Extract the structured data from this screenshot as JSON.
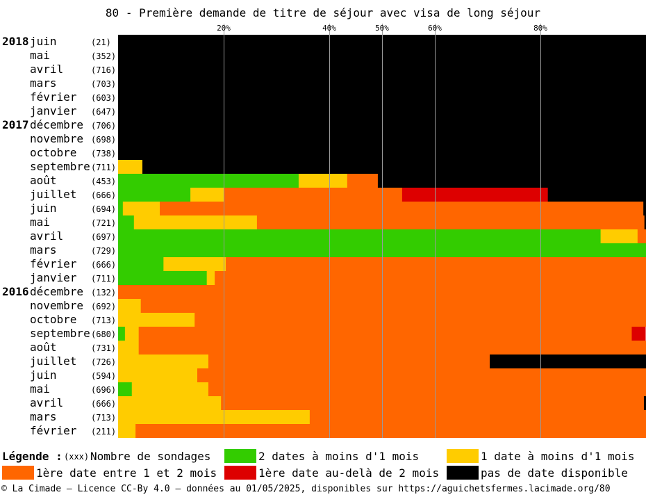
{
  "title": "80 - Première demande de titre de séjour avec visa de long séjour",
  "chart_data": {
    "type": "bar",
    "stacked": true,
    "orientation": "horizontal",
    "title": "80 - Première demande de titre de séjour avec visa de long séjour",
    "xlim": [
      0,
      100
    ],
    "x_ticks": [
      {
        "value": 20,
        "label": "20%"
      },
      {
        "value": 40,
        "label": "40%"
      },
      {
        "value": 50,
        "label": "50%"
      },
      {
        "value": 60,
        "label": "60%"
      },
      {
        "value": 80,
        "label": "80%"
      }
    ],
    "grid": true,
    "series": [
      {
        "key": "two_dates",
        "name": "2 dates à moins d'1 mois",
        "color": "#33cc00"
      },
      {
        "key": "one_date",
        "name": "1 date à moins d'1 mois",
        "color": "#ffcc00"
      },
      {
        "key": "one_two_months",
        "name": "1ère date entre 1 et 2 mois",
        "color": "#ff6600"
      },
      {
        "key": "beyond_two_months",
        "name": "1ère date au-delà de 2 mois",
        "color": "#dd0000"
      },
      {
        "key": "none",
        "name": "pas de date disponible",
        "color": "#000000"
      }
    ],
    "rows": [
      {
        "year": "2018",
        "month": "juin",
        "count": "(21)",
        "values": [
          0,
          0,
          0,
          0,
          100
        ]
      },
      {
        "year": "",
        "month": "mai",
        "count": "(352)",
        "values": [
          0,
          0,
          0,
          0,
          100
        ]
      },
      {
        "year": "",
        "month": "avril",
        "count": "(716)",
        "values": [
          0,
          0,
          0,
          0,
          100
        ]
      },
      {
        "year": "",
        "month": "mars",
        "count": "(703)",
        "values": [
          0,
          0,
          0,
          0,
          100
        ]
      },
      {
        "year": "",
        "month": "février",
        "count": "(603)",
        "values": [
          0,
          0,
          0,
          0,
          100
        ]
      },
      {
        "year": "",
        "month": "janvier",
        "count": "(647)",
        "values": [
          0,
          0,
          0,
          0,
          100
        ]
      },
      {
        "year": "2017",
        "month": "décembre",
        "count": "(706)",
        "values": [
          0,
          0,
          0,
          0,
          100
        ]
      },
      {
        "year": "",
        "month": "novembre",
        "count": "(698)",
        "values": [
          0,
          0,
          0,
          0,
          100
        ]
      },
      {
        "year": "",
        "month": "octobre",
        "count": "(738)",
        "values": [
          0,
          0,
          0,
          0,
          100
        ]
      },
      {
        "year": "",
        "month": "septembre",
        "count": "(711)",
        "values": [
          0,
          4.6,
          0,
          0,
          95.4
        ]
      },
      {
        "year": "",
        "month": "août",
        "count": "(453)",
        "values": [
          34.2,
          9.2,
          5.8,
          0,
          50.8
        ]
      },
      {
        "year": "",
        "month": "juillet",
        "count": "(666)",
        "values": [
          13.7,
          6.3,
          33.8,
          27.6,
          18.6
        ]
      },
      {
        "year": "",
        "month": "juin",
        "count": "(694)",
        "values": [
          0.9,
          7.0,
          91.6,
          0,
          0.5
        ]
      },
      {
        "year": "",
        "month": "mai",
        "count": "(721)",
        "values": [
          3.0,
          23.3,
          73.4,
          0,
          0.3
        ]
      },
      {
        "year": "",
        "month": "avril",
        "count": "(697)",
        "values": [
          91.4,
          7.0,
          1.6,
          0,
          0
        ]
      },
      {
        "year": "",
        "month": "mars",
        "count": "(729)",
        "values": [
          100,
          0,
          0,
          0,
          0
        ]
      },
      {
        "year": "",
        "month": "février",
        "count": "(666)",
        "values": [
          8.6,
          11.8,
          79.6,
          0,
          0
        ]
      },
      {
        "year": "",
        "month": "janvier",
        "count": "(711)",
        "values": [
          16.8,
          1.5,
          81.7,
          0,
          0
        ]
      },
      {
        "year": "2016",
        "month": "décembre",
        "count": "(132)",
        "values": [
          0,
          0,
          100,
          0,
          0
        ]
      },
      {
        "year": "",
        "month": "novembre",
        "count": "(692)",
        "values": [
          0,
          4.3,
          95.7,
          0,
          0
        ]
      },
      {
        "year": "",
        "month": "octobre",
        "count": "(713)",
        "values": [
          0,
          14.5,
          85.5,
          0,
          0
        ]
      },
      {
        "year": "",
        "month": "septembre",
        "count": "(680)",
        "values": [
          1.3,
          2.6,
          93.4,
          2.6,
          0
        ]
      },
      {
        "year": "",
        "month": "août",
        "count": "(731)",
        "values": [
          0,
          3.9,
          96.1,
          0,
          0
        ]
      },
      {
        "year": "",
        "month": "juillet",
        "count": "(726)",
        "values": [
          0,
          17.1,
          53.3,
          0,
          29.6
        ]
      },
      {
        "year": "",
        "month": "juin",
        "count": "(594)",
        "values": [
          0,
          15.0,
          85.0,
          0,
          0
        ]
      },
      {
        "year": "",
        "month": "mai",
        "count": "(696)",
        "values": [
          2.6,
          14.5,
          82.9,
          0,
          0
        ]
      },
      {
        "year": "",
        "month": "avril",
        "count": "(666)",
        "values": [
          0,
          19.5,
          80.1,
          0,
          0.4
        ]
      },
      {
        "year": "",
        "month": "mars",
        "count": "(713)",
        "values": [
          0,
          36.3,
          63.7,
          0,
          0
        ]
      },
      {
        "year": "",
        "month": "février",
        "count": "(211)",
        "values": [
          0,
          3.3,
          96.7,
          0,
          0
        ]
      }
    ]
  },
  "legend": {
    "heading": "Légende :",
    "count_note": "(xxx)",
    "count_label": "Nombre de sondages",
    "items": [
      {
        "label": "2 dates à moins d'1 mois",
        "color": "#33cc00"
      },
      {
        "label": "1 date à moins d'1 mois",
        "color": "#ffcc00"
      },
      {
        "label": "1ère date entre 1 et 2 mois",
        "color": "#ff6600"
      },
      {
        "label": "1ère date au-delà de 2 mois",
        "color": "#dd0000"
      },
      {
        "label": "pas de date disponible",
        "color": "#000000"
      }
    ]
  },
  "footer": "© La Cimade — Licence CC-By 4.0 — données au 01/05/2025, disponibles sur https://aguichetsfermes.lacimade.org/80"
}
